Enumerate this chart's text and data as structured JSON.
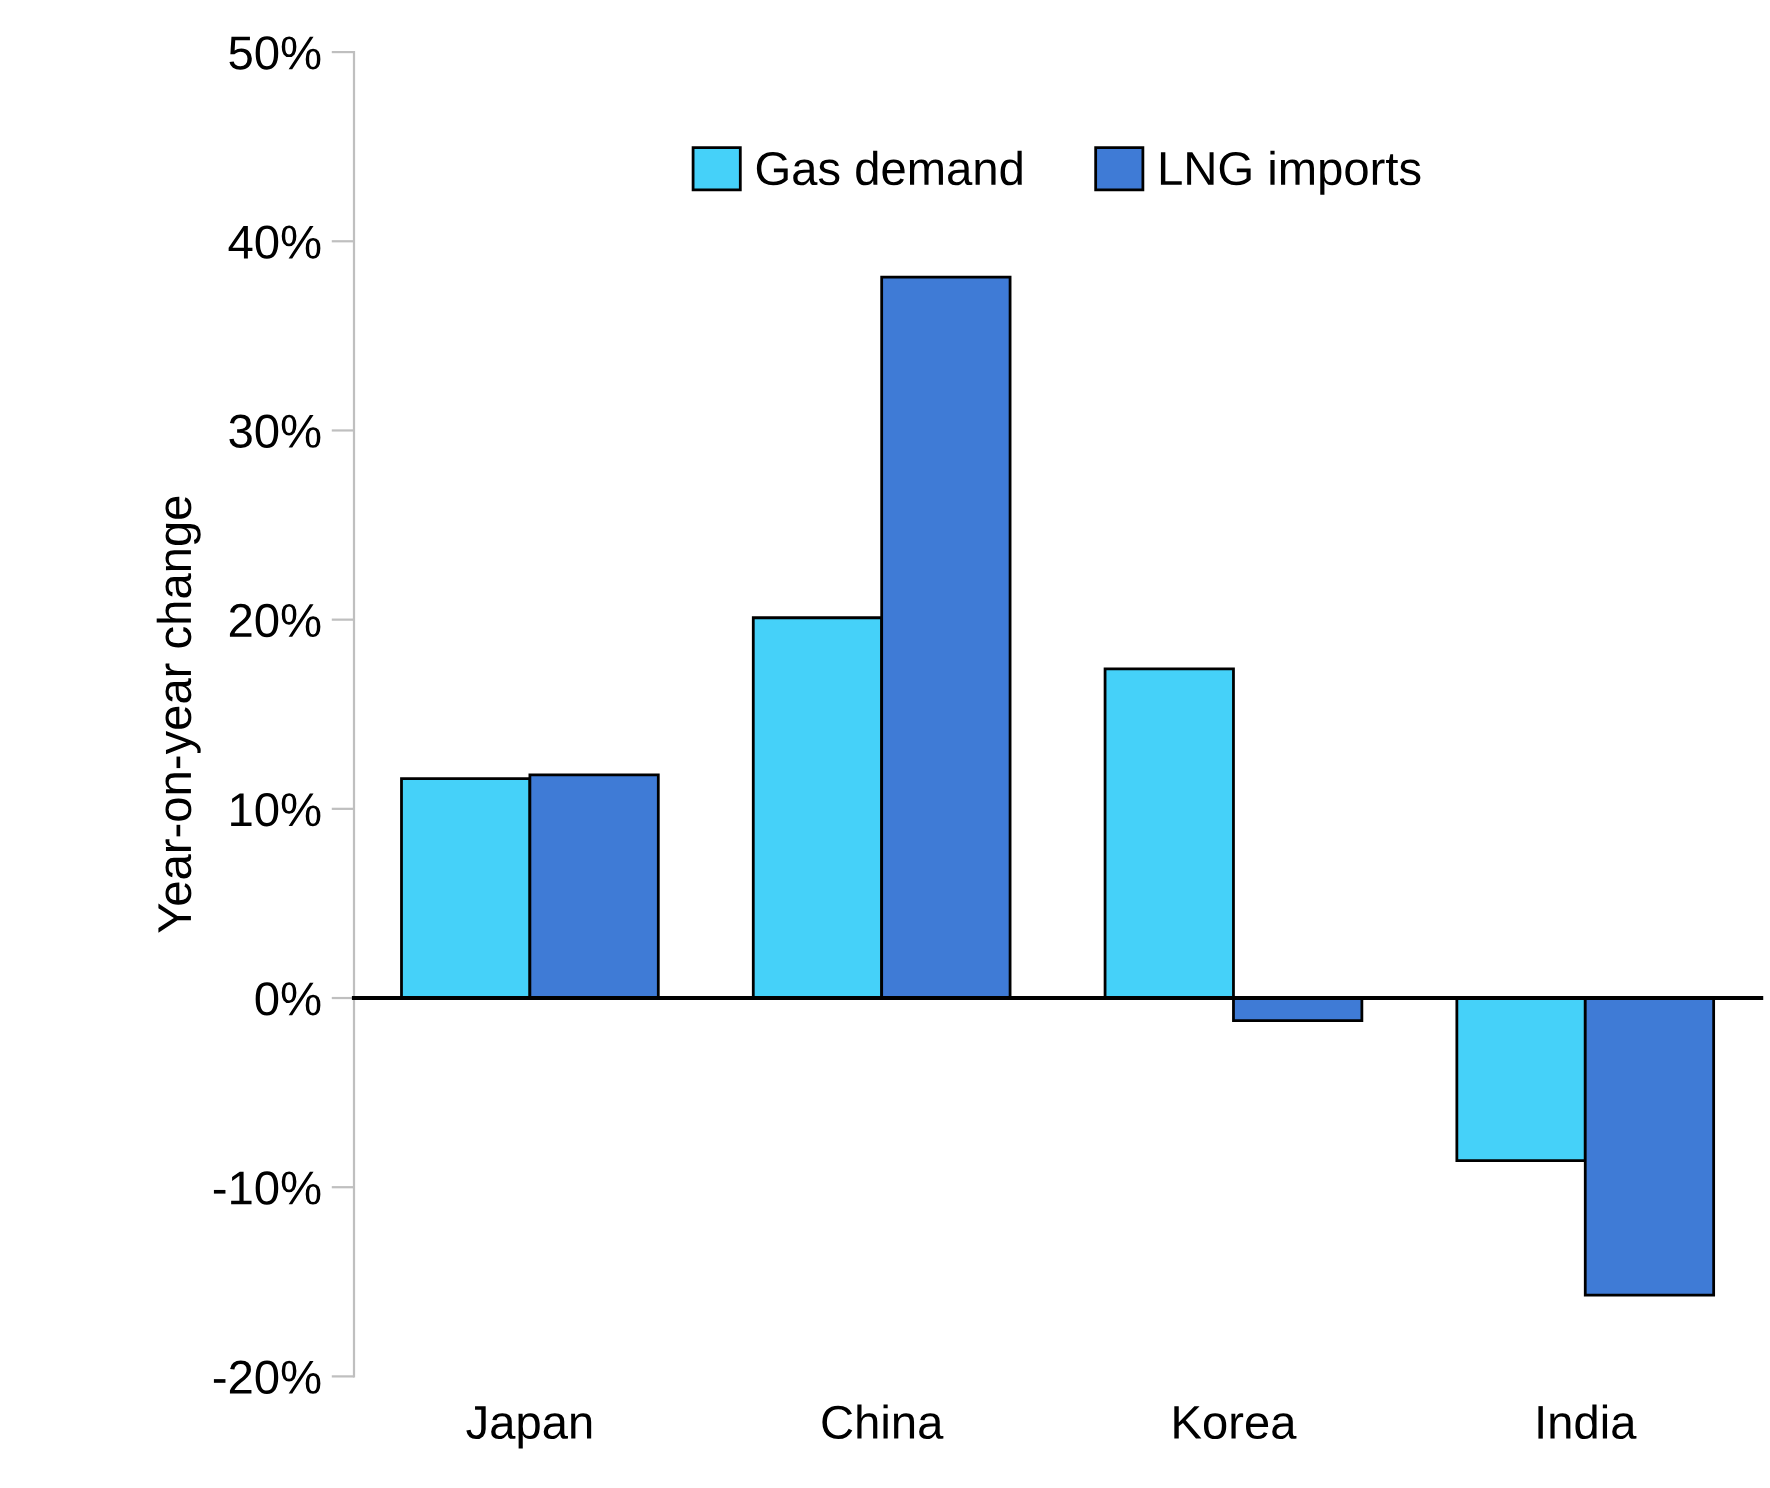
{
  "chart_data": {
    "type": "bar",
    "ylabel": "Year-on-year change",
    "categories": [
      "Japan",
      "China",
      "Korea",
      "India"
    ],
    "series": [
      {
        "name": "Gas demand",
        "color": "#45d1f9",
        "values": [
          11.6,
          20.1,
          17.4,
          -8.6
        ]
      },
      {
        "name": "LNG imports",
        "color": "#3f7bd6",
        "values": [
          11.8,
          38.1,
          -1.2,
          -15.7
        ]
      }
    ],
    "ylim": [
      -20,
      50
    ],
    "yticks": [
      {
        "value": -20,
        "label": "-20%"
      },
      {
        "value": -10,
        "label": "-10%"
      },
      {
        "value": 0,
        "label": "0%"
      },
      {
        "value": 10,
        "label": "10%"
      },
      {
        "value": 20,
        "label": "20%"
      },
      {
        "value": 30,
        "label": "30%"
      },
      {
        "value": 40,
        "label": "40%"
      },
      {
        "value": 50,
        "label": "50%"
      }
    ],
    "legend": "top"
  }
}
